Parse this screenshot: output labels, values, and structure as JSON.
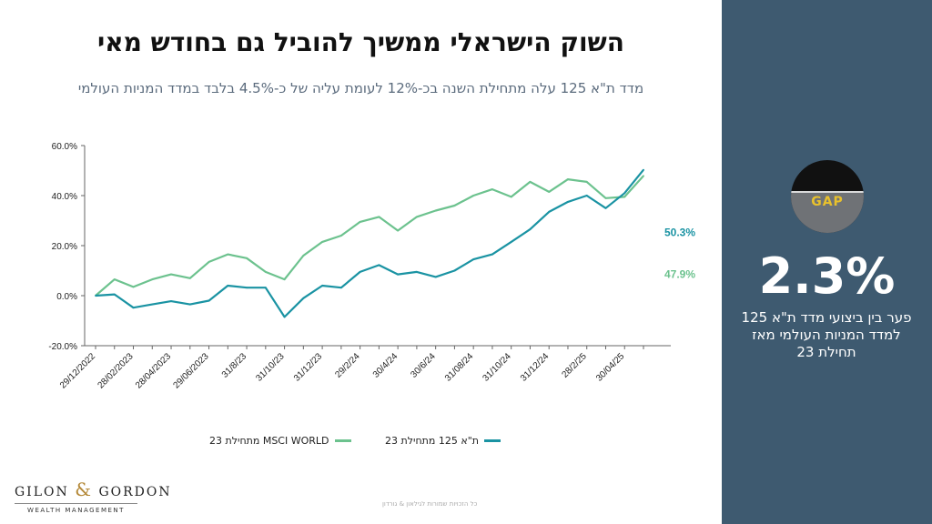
{
  "title": "השוק הישראלי ממשיך להוביל גם בחודש מאי",
  "subtitle": "מדד ת\"א 125 עלה מתחילת השנה בכ-12% לעומת עליה של כ-4.5% בלבד במדד המניות העולמי",
  "chart_data": {
    "type": "line",
    "x": [
      "29/12/2022",
      "31/01/2023",
      "28/02/2023",
      "31/03/2023",
      "28/04/2023",
      "31/05/2023",
      "29/06/2023",
      "31/07/2023",
      "31/8/23",
      "30/9/23",
      "31/10/23",
      "30/11/23",
      "31/12/23",
      "31/1/24",
      "29/2/24",
      "31/3/24",
      "30/4/24",
      "31/5/24",
      "30/6/24",
      "31/7/24",
      "31/08/24",
      "30/9/24",
      "31/10/24",
      "30/11/24",
      "31/12/24",
      "31/1/25",
      "28/2/25",
      "31/3/25",
      "30/04/25",
      "31/5/25"
    ],
    "tick_labels": [
      "29/12/2022",
      "28/02/2023",
      "28/04/2023",
      "29/06/2023",
      "31/8/23",
      "31/10/23",
      "31/12/23",
      "29/2/24",
      "30/4/24",
      "30/6/24",
      "31/08/24",
      "31/10/24",
      "31/12/24",
      "28/2/25",
      "30/04/25"
    ],
    "series": [
      {
        "name": "ת\"א 125 מתחילת 23",
        "color": "#1a93a3",
        "end_label": "50.3%",
        "values": [
          0,
          0.5,
          -4.8,
          -3.5,
          -2.2,
          -3.5,
          -2,
          4,
          3.2,
          3.2,
          -8.5,
          -1,
          4,
          3.2,
          9.5,
          12.2,
          8.5,
          9.5,
          7.5,
          10,
          14.5,
          16.5,
          21.5,
          26.5,
          33.5,
          37.5,
          40,
          35,
          41,
          50.3
        ]
      },
      {
        "name": "MSCI WORLD מתחילת 23",
        "color": "#6cc28e",
        "end_label": "47.9%",
        "values": [
          0,
          6.5,
          3.5,
          6.5,
          8.5,
          7,
          13.5,
          16.5,
          15,
          9.5,
          6.5,
          16,
          21.5,
          24,
          29.5,
          31.5,
          26,
          31.5,
          34,
          36,
          40,
          42.5,
          39.5,
          45.5,
          41.5,
          46.5,
          45.5,
          39,
          39.5,
          47.9
        ]
      }
    ],
    "ylim": [
      -20,
      60
    ],
    "yticks": [
      "-20.0%",
      "0.0%",
      "20.0%",
      "40.0%",
      "60.0%"
    ],
    "ytick_values": [
      -20,
      0,
      20,
      40,
      60
    ],
    "xlabel": "",
    "ylabel": "",
    "grid": false,
    "legend_position": "bottom"
  },
  "sidebar": {
    "image_text": "GAP",
    "big_number": "2.3%",
    "description": "פער בין ביצועי מדד ת\"א 125 למדד המניות העולמי מאז תחילת 23"
  },
  "logo": {
    "top_left": "GILON",
    "amp": "&",
    "top_right": "GORDON",
    "sub": "WEALTH MANAGEMENT"
  },
  "footer": "כל הזכויות שמורות לגילאון & גורדון",
  "colors": {
    "sidebar_bg": "#3e5a70",
    "series1": "#1a93a3",
    "series2": "#6cc28e"
  }
}
